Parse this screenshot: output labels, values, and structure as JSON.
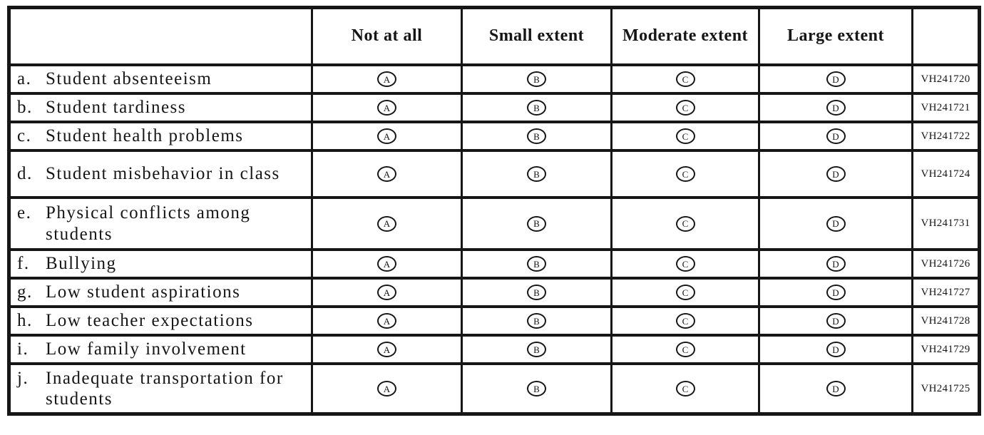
{
  "survey_table": {
    "headers": {
      "label_col": "",
      "option_cols": [
        "Not at all",
        "Small extent",
        "Moderate extent",
        "Large extent"
      ],
      "code_col": ""
    },
    "options": [
      "A",
      "B",
      "C",
      "D"
    ],
    "rows": [
      {
        "letter": "a.",
        "text": "Student absenteeism",
        "code": "VH241720"
      },
      {
        "letter": "b.",
        "text": "Student tardiness",
        "code": "VH241721"
      },
      {
        "letter": "c.",
        "text": "Student health problems",
        "code": "VH241722"
      },
      {
        "letter": "d.",
        "text": "Student misbehavior in class",
        "code": "VH241724"
      },
      {
        "letter": "e.",
        "text": "Physical conflicts among students",
        "code": "VH241731"
      },
      {
        "letter": "f.",
        "text": "Bullying",
        "code": "VH241726"
      },
      {
        "letter": "g.",
        "text": "Low student aspirations",
        "code": "VH241727"
      },
      {
        "letter": "h.",
        "text": "Low teacher expectations",
        "code": "VH241728"
      },
      {
        "letter": "i.",
        "text": "Low family involvement",
        "code": "VH241729"
      },
      {
        "letter": "j.",
        "text": "Inadequate transportation for students",
        "code": "VH241725"
      }
    ],
    "colors": {
      "border": "#161616",
      "text": "#161616",
      "background": "#ffffff"
    }
  }
}
